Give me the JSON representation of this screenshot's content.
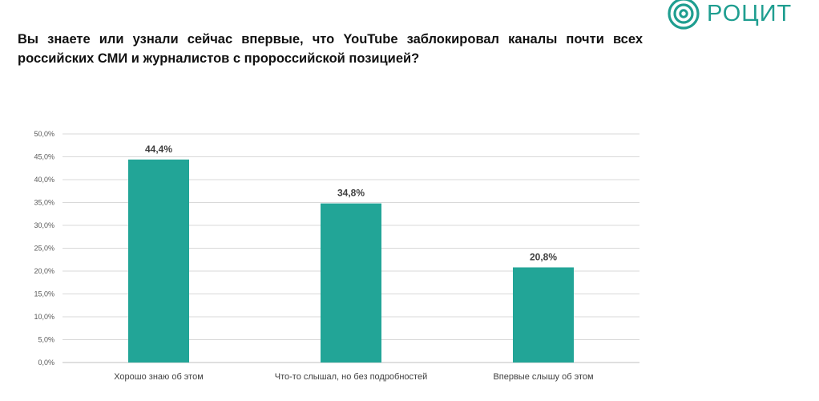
{
  "logo": {
    "text": "РОЦИТ",
    "color": "#1f9e90",
    "icon": "concentric-rings-icon"
  },
  "chart_data": {
    "type": "bar",
    "title": "Вы знаете или узнали сейчас впервые, что YouTube заблокировал каналы почти всех российских СМИ и журналистов с пророссийской позицией?",
    "categories": [
      "Хорошо знаю об этом",
      "Что-то слышал, но без подробностей",
      "Впервые слышу об этом"
    ],
    "values": [
      44.4,
      34.8,
      20.8
    ],
    "data_labels": [
      "44,4%",
      "34,8%",
      "20,8%"
    ],
    "ylim": [
      0,
      50
    ],
    "yticks": [
      "0,0%",
      "5,0%",
      "10,0%",
      "15,0%",
      "20,0%",
      "25,0%",
      "30,0%",
      "35,0%",
      "40,0%",
      "45,0%",
      "50,0%"
    ],
    "xlabel": "",
    "ylabel": "",
    "grid": true,
    "legend": "none",
    "bar_color": "#22a597"
  }
}
